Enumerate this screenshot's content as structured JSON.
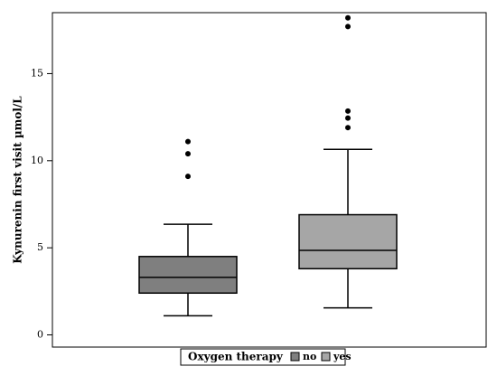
{
  "chart_data": {
    "type": "box",
    "y_label": "Kynurenin first visit µmol/L",
    "legend_title": "Oxygen therapy",
    "ylim": [
      -0.7,
      18.5
    ],
    "yticks": [
      0,
      5,
      10,
      15
    ],
    "series": [
      {
        "name": "no",
        "color": "#7f7f7f",
        "whisker_low": 1.1,
        "q1": 2.4,
        "median": 3.3,
        "q3": 4.5,
        "whisker_high": 6.35,
        "outliers": [
          11.1,
          10.4,
          9.1
        ]
      },
      {
        "name": "yes",
        "color": "#a6a6a6",
        "whisker_low": 1.55,
        "q1": 3.8,
        "median": 4.85,
        "q3": 6.9,
        "whisker_high": 10.65,
        "outliers": [
          18.2,
          17.7,
          12.85,
          12.45,
          11.9
        ]
      }
    ]
  }
}
